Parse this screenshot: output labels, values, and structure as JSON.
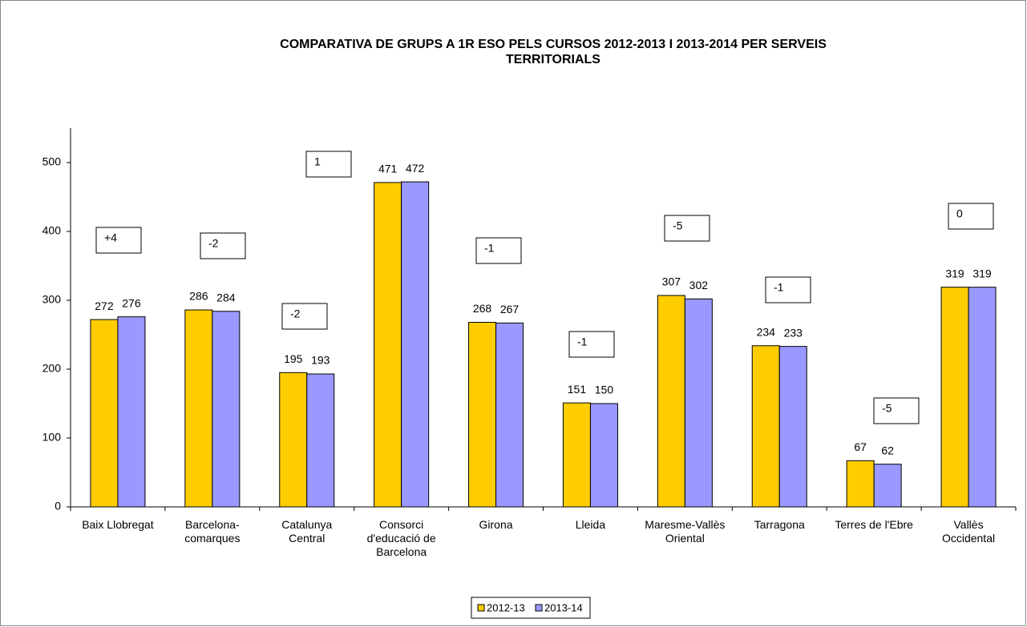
{
  "chart_data": {
    "type": "bar",
    "title": "COMPARATIVA DE GRUPS A 1R ESO PELS CURSOS 2012-2013 I 2013-2014 PER SERVEIS\nTERRITORIALS",
    "categories": [
      "Baix Llobregat",
      "Barcelona-\ncomarques",
      "Catalunya\nCentral",
      "Consorci\nd'educació de\nBarcelona",
      "Girona",
      "Lleida",
      "Maresme-Vallès\nOriental",
      "Tarragona",
      "Terres de l'Ebre",
      "Vallès\nOccidental"
    ],
    "series": [
      {
        "name": "2012-13",
        "color": "#ffcc00",
        "values": [
          272,
          286,
          195,
          471,
          268,
          151,
          307,
          234,
          67,
          319
        ]
      },
      {
        "name": "2013-14",
        "color": "#9999ff",
        "values": [
          276,
          284,
          193,
          472,
          267,
          150,
          302,
          233,
          62,
          319
        ]
      }
    ],
    "annotations": [
      "+4",
      "-2",
      "-2",
      "1",
      "-1",
      "-1",
      "-5",
      "-1",
      "-5",
      "0"
    ],
    "ylim": [
      0,
      550
    ],
    "yticks": [
      0,
      100,
      200,
      300,
      400,
      500
    ],
    "grid": false,
    "legend": "bottom"
  }
}
